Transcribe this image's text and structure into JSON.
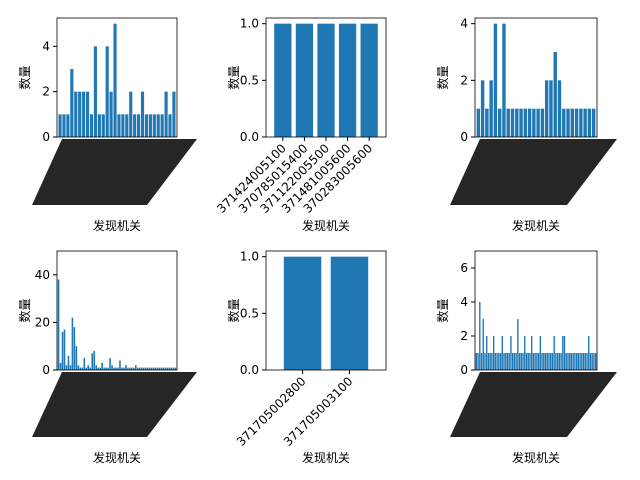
{
  "chart_data": [
    {
      "type": "bar",
      "xlabel": "发现机关",
      "ylabel": "数量",
      "color": "#1f77b4",
      "categories": [
        null,
        null,
        null,
        null,
        null,
        null,
        null,
        null,
        null,
        null,
        null,
        null,
        null,
        null,
        null,
        null,
        null,
        null,
        null,
        null,
        null,
        null,
        null,
        null,
        null,
        null,
        null,
        null,
        null,
        null
      ],
      "values": [
        1,
        1,
        1,
        3,
        2,
        2,
        2,
        2,
        1,
        4,
        1,
        1,
        4,
        2,
        5,
        1,
        1,
        1,
        2,
        1,
        1,
        2,
        1,
        1,
        1,
        1,
        1,
        2,
        1,
        2
      ],
      "ylim": [
        0,
        5.25
      ],
      "yticks": [
        0,
        2,
        4
      ]
    },
    {
      "type": "bar",
      "xlabel": "发现机关",
      "ylabel": "数量",
      "color": "#1f77b4",
      "categories": [
        "371424005100",
        "370785015400",
        "371122005500",
        "371481005600",
        "370283005600"
      ],
      "values": [
        1,
        1,
        1,
        1,
        1
      ],
      "ylim": [
        0,
        1.05
      ],
      "yticks": [
        {
          "value": 0,
          "label": "0.0"
        },
        {
          "value": 0.5,
          "label": "0.5"
        },
        {
          "value": 1,
          "label": "1.0"
        }
      ]
    },
    {
      "type": "bar",
      "xlabel": "发现机关",
      "ylabel": "数量",
      "color": "#1f77b4",
      "categories": [
        null,
        null,
        null,
        null,
        null,
        null,
        null,
        null,
        null,
        null,
        null,
        null,
        null,
        null,
        null,
        null,
        null,
        null,
        null,
        null,
        null,
        null,
        null,
        null,
        null,
        null,
        null,
        null
      ],
      "values": [
        1,
        2,
        1,
        2,
        4,
        1,
        4,
        1,
        1,
        1,
        1,
        1,
        1,
        1,
        1,
        1,
        2,
        2,
        3,
        2,
        1,
        1,
        1,
        1,
        1,
        1,
        1,
        1
      ],
      "ylim": [
        0,
        4.2
      ],
      "yticks": [
        0,
        2,
        4
      ]
    },
    {
      "type": "bar",
      "xlabel": "发现机关",
      "ylabel": "数量",
      "color": "#1f77b4",
      "categories": [
        null,
        null,
        null,
        null,
        null,
        null,
        null,
        null,
        null,
        null,
        null,
        null,
        null,
        null,
        null,
        null,
        null,
        null,
        null,
        null,
        null,
        null,
        null,
        null,
        null,
        null,
        null,
        null,
        null,
        null,
        null,
        null,
        null,
        null,
        null,
        null,
        null,
        null,
        null,
        null,
        null,
        null,
        null,
        null,
        null,
        null,
        null,
        null,
        null,
        null,
        null,
        null,
        null,
        null,
        null,
        null,
        null,
        null,
        null,
        null
      ],
      "values": [
        38,
        3,
        16,
        17,
        2,
        6,
        2,
        22,
        18,
        10,
        2,
        1,
        1,
        5,
        1,
        2,
        1,
        7,
        8,
        2,
        1,
        1,
        3,
        1,
        1,
        1,
        5,
        2,
        1,
        1,
        1,
        4,
        1,
        1,
        2,
        1,
        1,
        1,
        1,
        2,
        1,
        1,
        1,
        1,
        1,
        1,
        1,
        1,
        1,
        1,
        1,
        1,
        1,
        1,
        1,
        1,
        1,
        1,
        1,
        1
      ],
      "ylim": [
        0,
        50
      ],
      "yticks": [
        0,
        20,
        40
      ]
    },
    {
      "type": "bar",
      "xlabel": "发现机关",
      "ylabel": "数量",
      "color": "#1f77b4",
      "categories": [
        "371705002800",
        "371705003100"
      ],
      "values": [
        1,
        1
      ],
      "ylim": [
        0,
        1.05
      ],
      "yticks": [
        {
          "value": 0,
          "label": "0.0"
        },
        {
          "value": 0.5,
          "label": "0.5"
        },
        {
          "value": 1,
          "label": "1.0"
        }
      ]
    },
    {
      "type": "bar",
      "xlabel": "发现机关",
      "ylabel": "数量",
      "color": "#1f77b4",
      "categories": [
        null,
        null,
        null,
        null,
        null,
        null,
        null,
        null,
        null,
        null,
        null,
        null,
        null,
        null,
        null,
        null,
        null,
        null,
        null,
        null,
        null,
        null,
        null,
        null,
        null,
        null,
        null,
        null,
        null,
        null,
        null,
        null,
        null,
        null,
        null,
        null,
        null,
        null,
        null,
        null,
        null,
        null,
        null,
        null,
        null,
        null,
        null,
        null,
        null,
        null,
        null,
        null,
        null,
        null,
        null,
        null,
        null,
        null,
        null,
        null,
        null,
        null,
        null,
        null,
        null,
        null,
        null,
        null,
        null,
        null
      ],
      "values": [
        1,
        1,
        4,
        1,
        3,
        1,
        2,
        1,
        1,
        1,
        2,
        1,
        1,
        1,
        1,
        2,
        1,
        1,
        1,
        1,
        2,
        1,
        1,
        1,
        3,
        1,
        1,
        1,
        2,
        1,
        1,
        1,
        2,
        1,
        1,
        1,
        1,
        2,
        1,
        1,
        1,
        1,
        1,
        1,
        1,
        2,
        1,
        1,
        1,
        1,
        2,
        2,
        1,
        1,
        1,
        1,
        1,
        1,
        1,
        1,
        1,
        1,
        1,
        1,
        1,
        2,
        1,
        1,
        1,
        1
      ],
      "ylim": [
        0,
        7
      ],
      "yticks": [
        0,
        2,
        4,
        6
      ]
    }
  ]
}
